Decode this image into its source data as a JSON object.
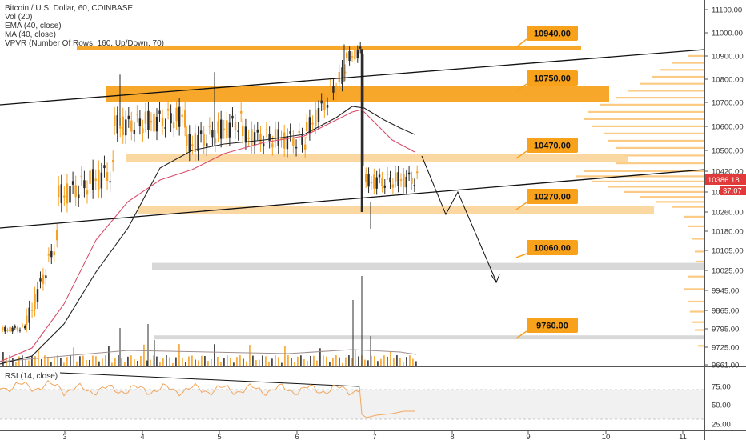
{
  "legend": {
    "symbol": "Bitcoin / U.S. Dollar, 60, COINBASE",
    "vol": "Vol (20)",
    "ema": "EMA (40, close)",
    "ma": "MA (40, close)",
    "vpvr": "VPVR (Number Of Rows, 160, Up/Down, 70)",
    "rsi": "RSI (14, close)"
  },
  "price_axis": {
    "ticks": [
      "11100.00",
      "11000.00",
      "10900.00",
      "10800.00",
      "10700.00",
      "10600.00",
      "10500.00",
      "10420.00",
      "10340.00",
      "10260.00",
      "10180.00",
      "10105.00",
      "10025.00",
      "9945.00",
      "9865.00",
      "9795.00",
      "9725.00",
      "9661.00"
    ],
    "last_price": "10386.18",
    "countdown": "37:07"
  },
  "time_axis": {
    "ticks": [
      "3",
      "4",
      "5",
      "6",
      "7",
      "8",
      "9",
      "10",
      "11"
    ]
  },
  "rsi_axis": {
    "ticks": [
      "75.00",
      "50.00",
      "25.00"
    ]
  },
  "levels": [
    {
      "label": "10940.00",
      "kind": "orange-line"
    },
    {
      "label": "10750.00",
      "kind": "orange-zone"
    },
    {
      "label": "10470.00",
      "kind": "light-zone"
    },
    {
      "label": "10270.00",
      "kind": "light-zone"
    },
    {
      "label": "10060.00",
      "kind": "gray-zone"
    },
    {
      "label": "9760.00",
      "kind": "gray-zone"
    }
  ],
  "colors": {
    "candle": "#f7a021",
    "candle_dark": "#2b2b2b",
    "orange_zone": "#f7a21e",
    "light_zone": "#fbd59c",
    "gray_zone": "#d6d6d6",
    "label_bg": "#f8a21c",
    "ema": "#d94d6a",
    "ma": "#222222",
    "rsi": "#f2a65e",
    "last_price": "#e03a3a"
  },
  "chart_data": {
    "type": "candlestick",
    "symbol": "BTCUSD",
    "timeframe": "60",
    "x_ticks": [
      "3",
      "4",
      "5",
      "6",
      "7",
      "8",
      "9",
      "10",
      "11"
    ],
    "price_ticks_shown": [
      11100,
      11000,
      10900,
      10800,
      10700,
      10600,
      10500,
      10420,
      10340,
      10260,
      10180,
      10105,
      10025,
      9945,
      9865,
      9795,
      9725,
      9661
    ],
    "key_levels": [
      10940,
      10750,
      10470,
      10270,
      10060,
      9760
    ],
    "last_price": 10386.18,
    "price_range_visible": [
      9661,
      11100
    ],
    "rsi_ticks": [
      75,
      50,
      25
    ]
  }
}
